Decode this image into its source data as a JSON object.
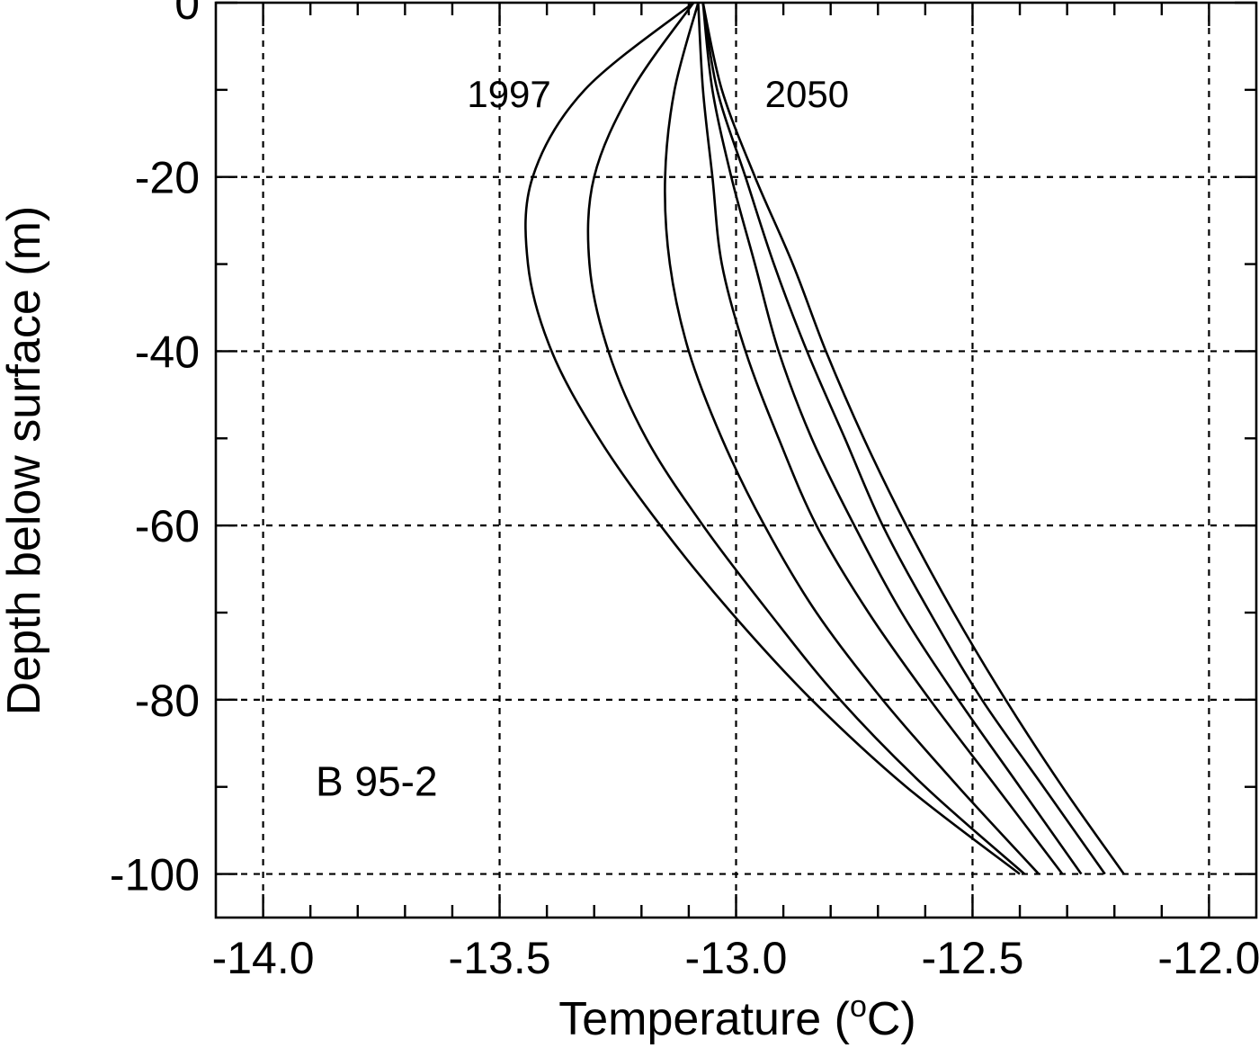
{
  "chart_data": {
    "type": "line",
    "title": "",
    "xlabel": "Temperature (",
    "xlabel_sup": "o",
    "xlabel_end": "C)",
    "ylabel": "Depth below surface (m)",
    "xlim": [
      -14.1,
      -11.9
    ],
    "ylim": [
      -105,
      0
    ],
    "x_ticks": [
      -14.0,
      -13.5,
      -13.0,
      -12.5,
      -12.0
    ],
    "x_tick_labels": [
      "-14.0",
      "-13.5",
      "-13.0",
      "-12.5",
      "-12.0"
    ],
    "y_ticks": [
      0,
      -20,
      -40,
      -60,
      -80,
      -100
    ],
    "y_tick_labels": [
      "0",
      "-20",
      "-40",
      "-60",
      "-80",
      "-100"
    ],
    "x_minor_step": 0.1,
    "y_minor_step": 10,
    "grid": true,
    "annotations": [
      {
        "text": "1997",
        "x": -13.48,
        "y": -12
      },
      {
        "text": "2050",
        "x": -12.85,
        "y": -12
      },
      {
        "text": "B 95-2",
        "x": -13.76,
        "y": -91
      }
    ],
    "series": [
      {
        "depth": [
          0,
          -10,
          -20,
          -30,
          -40,
          -50,
          -60,
          -70,
          -80,
          -90,
          -100
        ],
        "temp": [
          -13.09,
          -13.32,
          -13.43,
          -13.44,
          -13.39,
          -13.29,
          -13.16,
          -13.01,
          -12.84,
          -12.64,
          -12.4
        ]
      },
      {
        "depth": [
          0,
          -10,
          -20,
          -30,
          -40,
          -50,
          -60,
          -70,
          -80,
          -90,
          -100
        ],
        "temp": [
          -13.09,
          -13.22,
          -13.3,
          -13.31,
          -13.27,
          -13.19,
          -13.07,
          -12.93,
          -12.78,
          -12.6,
          -12.39
        ]
      },
      {
        "depth": [
          0,
          -10,
          -20,
          -30,
          -40,
          -50,
          -60,
          -70,
          -80,
          -90,
          -100
        ],
        "temp": [
          -13.08,
          -13.13,
          -13.15,
          -13.14,
          -13.1,
          -13.03,
          -12.94,
          -12.83,
          -12.69,
          -12.53,
          -12.36
        ]
      },
      {
        "depth": [
          0,
          -10,
          -20,
          -30,
          -40,
          -50,
          -60,
          -70,
          -80,
          -90,
          -100
        ],
        "temp": [
          -13.08,
          -13.07,
          -13.05,
          -13.03,
          -12.98,
          -12.91,
          -12.83,
          -12.72,
          -12.59,
          -12.45,
          -12.31
        ]
      },
      {
        "depth": [
          0,
          -10,
          -20,
          -30,
          -40,
          -50,
          -60,
          -70,
          -80,
          -90,
          -100
        ],
        "temp": [
          -13.07,
          -13.05,
          -13.01,
          -12.96,
          -12.91,
          -12.84,
          -12.75,
          -12.65,
          -12.53,
          -12.4,
          -12.27
        ]
      },
      {
        "depth": [
          0,
          -10,
          -20,
          -30,
          -40,
          -50,
          -60,
          -70,
          -80,
          -90,
          -100
        ],
        "temp": [
          -13.07,
          -13.04,
          -12.98,
          -12.92,
          -12.85,
          -12.77,
          -12.69,
          -12.59,
          -12.48,
          -12.35,
          -12.22
        ]
      },
      {
        "depth": [
          0,
          -10,
          -20,
          -30,
          -40,
          -50,
          -60,
          -70,
          -80,
          -90,
          -100
        ],
        "temp": [
          -13.07,
          -13.03,
          -12.96,
          -12.88,
          -12.81,
          -12.73,
          -12.64,
          -12.54,
          -12.43,
          -12.31,
          -12.18
        ]
      }
    ]
  }
}
